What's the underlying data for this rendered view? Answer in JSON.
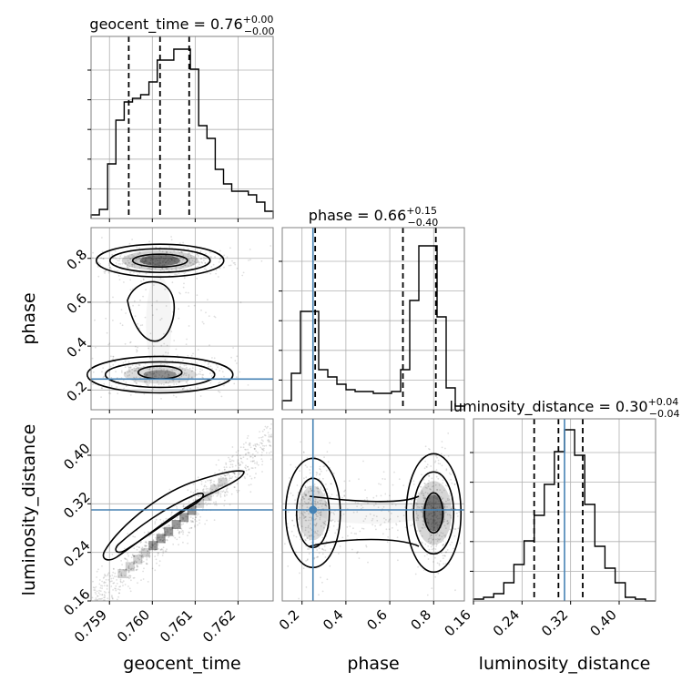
{
  "chart_data": {
    "type": "corner",
    "parameters": [
      "geocent_time",
      "phase",
      "luminosity_distance"
    ],
    "axis_labels": {
      "geocent_time": "geocent_time",
      "phase": "phase",
      "luminosity_distance": "luminosity_distance"
    },
    "titles": {
      "geocent_time": {
        "name": "geocent_time",
        "median": "0.76",
        "plus": "+0.00",
        "minus": "−0.00"
      },
      "phase": {
        "name": "phase",
        "median": "0.66",
        "plus": "+0.15",
        "minus": "−0.40"
      },
      "luminosity_distance": {
        "name": "luminosity_distance",
        "median": "0.30",
        "plus": "+0.04",
        "minus": "−0.04"
      }
    },
    "ranges": {
      "geocent_time": [
        0.75857,
        0.76282
      ],
      "phase": [
        0.11,
        0.94
      ],
      "luminosity_distance": [
        0.16,
        0.46
      ]
    },
    "ticks": {
      "geocent_time": [
        {
          "v": 0.759,
          "label": "0.759"
        },
        {
          "v": 0.76,
          "label": "0.760"
        },
        {
          "v": 0.761,
          "label": "0.761"
        },
        {
          "v": 0.762,
          "label": "0.762"
        }
      ],
      "phase": [
        {
          "v": 0.2,
          "label": "0.2"
        },
        {
          "v": 0.4,
          "label": "0.4"
        },
        {
          "v": 0.6,
          "label": "0.6"
        },
        {
          "v": 0.8,
          "label": "0.8"
        }
      ],
      "luminosity_distance": [
        {
          "v": 0.16,
          "label": "0.16"
        },
        {
          "v": 0.24,
          "label": "0.24"
        },
        {
          "v": 0.32,
          "label": "0.32"
        },
        {
          "v": 0.4,
          "label": "0.40"
        }
      ]
    },
    "truths": {
      "phase": 0.25,
      "luminosity_distance": 0.31
    },
    "quantiles": {
      "geocent_time": [
        0.75945,
        0.76018,
        0.76086
      ],
      "phase": [
        0.26,
        0.66,
        0.81
      ],
      "luminosity_distance": [
        0.26,
        0.3,
        0.34
      ]
    },
    "histograms": {
      "geocent_time": [
        0.02,
        0.05,
        0.3,
        0.54,
        0.64,
        0.66,
        0.68,
        0.75,
        0.87,
        0.87,
        0.93,
        0.93,
        0.82,
        0.51,
        0.44,
        0.27,
        0.19,
        0.15,
        0.15,
        0.13,
        0.09,
        0.04
      ],
      "phase": [
        0.05,
        0.2,
        0.54,
        0.54,
        0.22,
        0.18,
        0.14,
        0.11,
        0.1,
        0.1,
        0.09,
        0.09,
        0.1,
        0.22,
        0.6,
        0.9,
        0.9,
        0.51,
        0.12,
        0.02
      ],
      "luminosity_distance": [
        0.01,
        0.02,
        0.04,
        0.1,
        0.2,
        0.33,
        0.47,
        0.64,
        0.82,
        0.94,
        0.8,
        0.53,
        0.3,
        0.18,
        0.1,
        0.02,
        0.01,
        0.0
      ]
    },
    "grid": true,
    "contour_levels": 4
  }
}
